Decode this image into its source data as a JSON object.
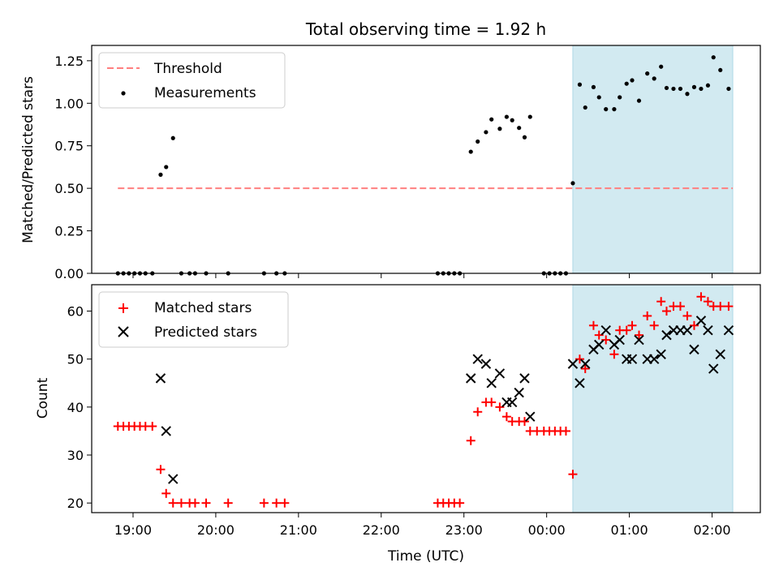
{
  "chart_data": [
    {
      "type": "scatter",
      "title": "Total observing time = 1.92 h",
      "xlabel": "",
      "ylabel": "Matched/Predicted stars",
      "xlim": [
        "18:30",
        "02:35"
      ],
      "ylim": [
        0,
        1.34
      ],
      "yticks": [
        "0.00",
        "0.25",
        "0.50",
        "0.75",
        "1.00",
        "1.25"
      ],
      "highlight_span": {
        "from": "00:19",
        "to": "02:15",
        "color": "#add8e6"
      },
      "threshold": {
        "name": "Threshold",
        "value": 0.5,
        "from": "18:49",
        "to": "02:15",
        "color": "#ff7f7f",
        "style": "dashed"
      },
      "legend_position": "upper-left",
      "series": [
        {
          "name": "Measurements",
          "marker": "dot",
          "color": "#000000",
          "points": [
            [
              "18:49",
              0
            ],
            [
              "18:53",
              0
            ],
            [
              "18:57",
              0
            ],
            [
              "19:01",
              0
            ],
            [
              "19:05",
              0
            ],
            [
              "19:09",
              0
            ],
            [
              "19:14",
              0
            ],
            [
              "19:20",
              0.58
            ],
            [
              "19:24",
              0.625
            ],
            [
              "19:29",
              0.795
            ],
            [
              "19:35",
              0
            ],
            [
              "19:41",
              0
            ],
            [
              "19:45",
              0
            ],
            [
              "19:53",
              0
            ],
            [
              "20:09",
              0
            ],
            [
              "20:35",
              0
            ],
            [
              "20:44",
              0
            ],
            [
              "20:50",
              0
            ],
            [
              "22:41",
              0
            ],
            [
              "22:45",
              0
            ],
            [
              "22:49",
              0
            ],
            [
              "22:53",
              0
            ],
            [
              "22:57",
              0
            ],
            [
              "23:05",
              0.715
            ],
            [
              "23:10",
              0.775
            ],
            [
              "23:16",
              0.83
            ],
            [
              "23:20",
              0.905
            ],
            [
              "23:26",
              0.85
            ],
            [
              "23:31",
              0.92
            ],
            [
              "23:35",
              0.9
            ],
            [
              "23:40",
              0.855
            ],
            [
              "23:44",
              0.8
            ],
            [
              "23:48",
              0.92
            ],
            [
              "23:58",
              0
            ],
            [
              "00:02",
              0
            ],
            [
              "00:06",
              0
            ],
            [
              "00:10",
              0
            ],
            [
              "00:14",
              0
            ],
            [
              "00:19",
              0.53
            ],
            [
              "00:24",
              1.11
            ],
            [
              "00:28",
              0.975
            ],
            [
              "00:34",
              1.095
            ],
            [
              "00:38",
              1.035
            ],
            [
              "00:43",
              0.965
            ],
            [
              "00:49",
              0.965
            ],
            [
              "00:53",
              1.035
            ],
            [
              "00:58",
              1.115
            ],
            [
              "01:02",
              1.135
            ],
            [
              "01:07",
              1.015
            ],
            [
              "01:13",
              1.175
            ],
            [
              "01:18",
              1.145
            ],
            [
              "01:23",
              1.215
            ],
            [
              "01:27",
              1.09
            ],
            [
              "01:32",
              1.085
            ],
            [
              "01:37",
              1.085
            ],
            [
              "01:42",
              1.055
            ],
            [
              "01:47",
              1.095
            ],
            [
              "01:52",
              1.085
            ],
            [
              "01:57",
              1.105
            ],
            [
              "02:01",
              1.27
            ],
            [
              "02:06",
              1.195
            ],
            [
              "02:12",
              1.085
            ]
          ]
        }
      ]
    },
    {
      "type": "scatter",
      "title": "",
      "xlabel": "Time (UTC)",
      "ylabel": "Count",
      "xlim": [
        "18:30",
        "02:35"
      ],
      "ylim": [
        18,
        65.5
      ],
      "yticks": [
        "20",
        "30",
        "40",
        "50",
        "60"
      ],
      "xticks": [
        "19:00",
        "20:00",
        "21:00",
        "22:00",
        "23:00",
        "00:00",
        "01:00",
        "02:00"
      ],
      "highlight_span": {
        "from": "00:19",
        "to": "02:15",
        "color": "#add8e6"
      },
      "legend_position": "upper-left",
      "series": [
        {
          "name": "Matched stars",
          "marker": "plus",
          "color": "#ff0000",
          "points": [
            [
              "18:49",
              36
            ],
            [
              "18:53",
              36
            ],
            [
              "18:57",
              36
            ],
            [
              "19:01",
              36
            ],
            [
              "19:05",
              36
            ],
            [
              "19:09",
              36
            ],
            [
              "19:14",
              36
            ],
            [
              "19:20",
              27
            ],
            [
              "19:24",
              22
            ],
            [
              "19:29",
              20
            ],
            [
              "19:35",
              20
            ],
            [
              "19:41",
              20
            ],
            [
              "19:45",
              20
            ],
            [
              "19:53",
              20
            ],
            [
              "20:09",
              20
            ],
            [
              "20:35",
              20
            ],
            [
              "20:44",
              20
            ],
            [
              "20:50",
              20
            ],
            [
              "22:41",
              20
            ],
            [
              "22:45",
              20
            ],
            [
              "22:49",
              20
            ],
            [
              "22:53",
              20
            ],
            [
              "22:57",
              20
            ],
            [
              "23:05",
              33
            ],
            [
              "23:10",
              39
            ],
            [
              "23:16",
              41
            ],
            [
              "23:20",
              41
            ],
            [
              "23:26",
              40
            ],
            [
              "23:31",
              38
            ],
            [
              "23:35",
              37
            ],
            [
              "23:40",
              37
            ],
            [
              "23:44",
              37
            ],
            [
              "23:48",
              35
            ],
            [
              "23:53",
              35
            ],
            [
              "23:58",
              35
            ],
            [
              "00:02",
              35
            ],
            [
              "00:06",
              35
            ],
            [
              "00:10",
              35
            ],
            [
              "00:14",
              35
            ],
            [
              "00:19",
              26
            ],
            [
              "00:24",
              50
            ],
            [
              "00:28",
              48
            ],
            [
              "00:34",
              57
            ],
            [
              "00:38",
              55
            ],
            [
              "00:43",
              54
            ],
            [
              "00:49",
              51
            ],
            [
              "00:53",
              56
            ],
            [
              "00:58",
              56
            ],
            [
              "01:02",
              57
            ],
            [
              "01:07",
              55
            ],
            [
              "01:13",
              59
            ],
            [
              "01:18",
              57
            ],
            [
              "01:23",
              62
            ],
            [
              "01:27",
              60
            ],
            [
              "01:32",
              61
            ],
            [
              "01:37",
              61
            ],
            [
              "01:42",
              59
            ],
            [
              "01:47",
              57
            ],
            [
              "01:52",
              63
            ],
            [
              "01:57",
              62
            ],
            [
              "02:01",
              61
            ],
            [
              "02:06",
              61
            ],
            [
              "02:12",
              61
            ]
          ]
        },
        {
          "name": "Predicted stars",
          "marker": "x",
          "color": "#000000",
          "points": [
            [
              "19:20",
              46
            ],
            [
              "19:24",
              35
            ],
            [
              "19:29",
              25
            ],
            [
              "23:05",
              46
            ],
            [
              "23:10",
              50
            ],
            [
              "23:16",
              49
            ],
            [
              "23:20",
              45
            ],
            [
              "23:26",
              47
            ],
            [
              "23:31",
              41
            ],
            [
              "23:35",
              41
            ],
            [
              "23:40",
              43
            ],
            [
              "23:44",
              46
            ],
            [
              "23:48",
              38
            ],
            [
              "00:19",
              49
            ],
            [
              "00:24",
              45
            ],
            [
              "00:28",
              49
            ],
            [
              "00:34",
              52
            ],
            [
              "00:38",
              53
            ],
            [
              "00:43",
              56
            ],
            [
              "00:49",
              53
            ],
            [
              "00:53",
              54
            ],
            [
              "00:58",
              50
            ],
            [
              "01:02",
              50
            ],
            [
              "01:07",
              54
            ],
            [
              "01:13",
              50
            ],
            [
              "01:18",
              50
            ],
            [
              "01:23",
              51
            ],
            [
              "01:27",
              55
            ],
            [
              "01:32",
              56
            ],
            [
              "01:37",
              56
            ],
            [
              "01:42",
              56
            ],
            [
              "01:47",
              52
            ],
            [
              "01:52",
              58
            ],
            [
              "01:57",
              56
            ],
            [
              "02:01",
              48
            ],
            [
              "02:06",
              51
            ],
            [
              "02:12",
              56
            ]
          ]
        }
      ]
    }
  ]
}
